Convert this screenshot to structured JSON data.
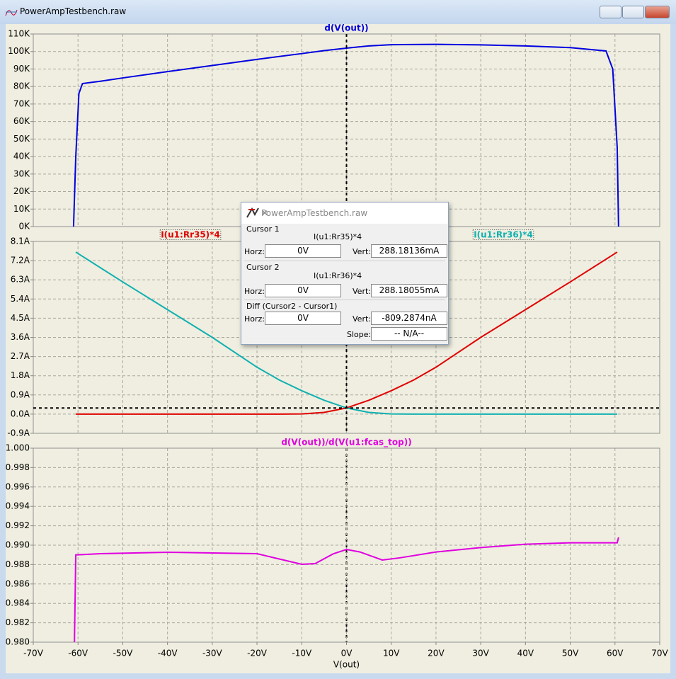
{
  "window": {
    "title": "PowerAmpTestbench.raw"
  },
  "chart_data": [
    {
      "type": "line",
      "ylim": [
        0,
        110000
      ],
      "yticks": [
        {
          "value": 0,
          "label": "0K"
        },
        {
          "value": 10000,
          "label": "10K"
        },
        {
          "value": 20000,
          "label": "20K"
        },
        {
          "value": 30000,
          "label": "30K"
        },
        {
          "value": 40000,
          "label": "40K"
        },
        {
          "value": 50000,
          "label": "50K"
        },
        {
          "value": 60000,
          "label": "60K"
        },
        {
          "value": 70000,
          "label": "70K"
        },
        {
          "value": 80000,
          "label": "80K"
        },
        {
          "value": 90000,
          "label": "90K"
        },
        {
          "value": 100000,
          "label": "100K"
        },
        {
          "value": 110000,
          "label": "110K"
        }
      ],
      "grid": true,
      "x": [
        -61,
        -60.5,
        -59.8,
        -59,
        -55,
        -50,
        -40,
        -30,
        -20,
        -10,
        -5,
        0,
        5,
        10,
        20,
        30,
        40,
        50,
        58,
        59.5,
        60.5,
        60.8
      ],
      "series": [
        {
          "name": "d(V(out))",
          "color": "#0000e0",
          "values": [
            0,
            40000,
            76000,
            81700,
            83000,
            84900,
            88500,
            92000,
            95500,
            98800,
            100500,
            101900,
            103200,
            103900,
            104100,
            103800,
            103200,
            102200,
            100300,
            90000,
            45000,
            0
          ]
        }
      ]
    },
    {
      "type": "line",
      "ylim": [
        -0.9,
        8.1
      ],
      "yticks": [
        {
          "value": -0.9,
          "label": "-0.9A"
        },
        {
          "value": 0,
          "label": "0.0A"
        },
        {
          "value": 0.9,
          "label": "0.9A"
        },
        {
          "value": 1.8,
          "label": "1.8A"
        },
        {
          "value": 2.7,
          "label": "2.7A"
        },
        {
          "value": 3.6,
          "label": "3.6A"
        },
        {
          "value": 4.5,
          "label": "4.5A"
        },
        {
          "value": 5.4,
          "label": "5.4A"
        },
        {
          "value": 6.3,
          "label": "6.3A"
        },
        {
          "value": 7.2,
          "label": "7.2A"
        },
        {
          "value": 8.1,
          "label": "8.1A"
        }
      ],
      "grid": true,
      "cursor": {
        "x": 0,
        "y": 0.28818136
      },
      "x": [
        -60.5,
        -50,
        -40,
        -30,
        -20,
        -15,
        -10,
        -5,
        0,
        5,
        10,
        15,
        20,
        30,
        40,
        50,
        60.5
      ],
      "series": [
        {
          "name": "I(u1:Rr35)*4",
          "color": "#e00000",
          "values": [
            0,
            0,
            0,
            0,
            0,
            0,
            0.01,
            0.08,
            0.29,
            0.65,
            1.1,
            1.6,
            2.2,
            3.6,
            4.9,
            6.2,
            7.6
          ]
        },
        {
          "name": "I(u1:Rr36)*4",
          "color": "#10b0b0",
          "values": [
            7.6,
            6.2,
            4.9,
            3.6,
            2.2,
            1.6,
            1.1,
            0.65,
            0.29,
            0.08,
            0.01,
            0,
            0,
            0,
            0,
            0,
            0
          ]
        }
      ]
    },
    {
      "type": "line",
      "ylim": [
        0.98,
        1.0
      ],
      "yticks": [
        {
          "value": 0.98,
          "label": "0.980"
        },
        0.982,
        0.984,
        0.986,
        0.988,
        {
          "value": 0.99,
          "label": "0.990"
        },
        0.992,
        0.994,
        0.996,
        0.998,
        {
          "value": 1.0,
          "label": "1.000"
        }
      ],
      "grid": true,
      "xlim": [
        -70,
        70
      ],
      "xticks": [
        {
          "value": -70,
          "label": "-70V"
        },
        {
          "value": -60,
          "label": "-60V"
        },
        {
          "value": -50,
          "label": "-50V"
        },
        {
          "value": -40,
          "label": "-40V"
        },
        {
          "value": -30,
          "label": "-30V"
        },
        {
          "value": -20,
          "label": "-20V"
        },
        {
          "value": -10,
          "label": "-10V"
        },
        {
          "value": 0,
          "label": "0V"
        },
        {
          "value": 10,
          "label": "10V"
        },
        {
          "value": 20,
          "label": "20V"
        },
        {
          "value": 30,
          "label": "30V"
        },
        {
          "value": 40,
          "label": "40V"
        },
        {
          "value": 50,
          "label": "50V"
        },
        {
          "value": 60,
          "label": "60V"
        },
        {
          "value": 70,
          "label": "70V"
        }
      ],
      "xlabel": "V(out)",
      "x": [
        -60.8,
        -60.5,
        -55,
        -40,
        -20,
        -10,
        -7,
        -3,
        0,
        3,
        8,
        12,
        20,
        30,
        40,
        50,
        60.5,
        60.8
      ],
      "series": [
        {
          "name": "d(V(out))/d(V(u1:fcas_top))",
          "color": "#e000e0",
          "values": [
            0.98,
            0.989,
            0.98912,
            0.98927,
            0.98912,
            0.98803,
            0.9881,
            0.9891,
            0.98956,
            0.9893,
            0.98847,
            0.9887,
            0.9893,
            0.98975,
            0.9901,
            0.99025,
            0.99025,
            0.9908
          ]
        }
      ]
    }
  ],
  "dialog": {
    "title": "PowerAmpTestbench.raw",
    "cursor1": {
      "heading": "Cursor 1",
      "trace": "I(u1:Rr35)*4",
      "horz_label": "Horz:",
      "horz": "0V",
      "vert_label": "Vert:",
      "vert": "288.18136mA"
    },
    "cursor2": {
      "heading": "Cursor 2",
      "trace": "I(u1:Rr36)*4",
      "horz_label": "Horz:",
      "horz": "0V",
      "vert_label": "Vert:",
      "vert": "288.18055mA"
    },
    "diff": {
      "heading": "Diff (Cursor2 - Cursor1)",
      "horz_label": "Horz:",
      "horz": "0V",
      "vert_label": "Vert:",
      "vert": "-809.2874nA",
      "slope_label": "Slope:",
      "slope": "-- N/A--"
    }
  }
}
